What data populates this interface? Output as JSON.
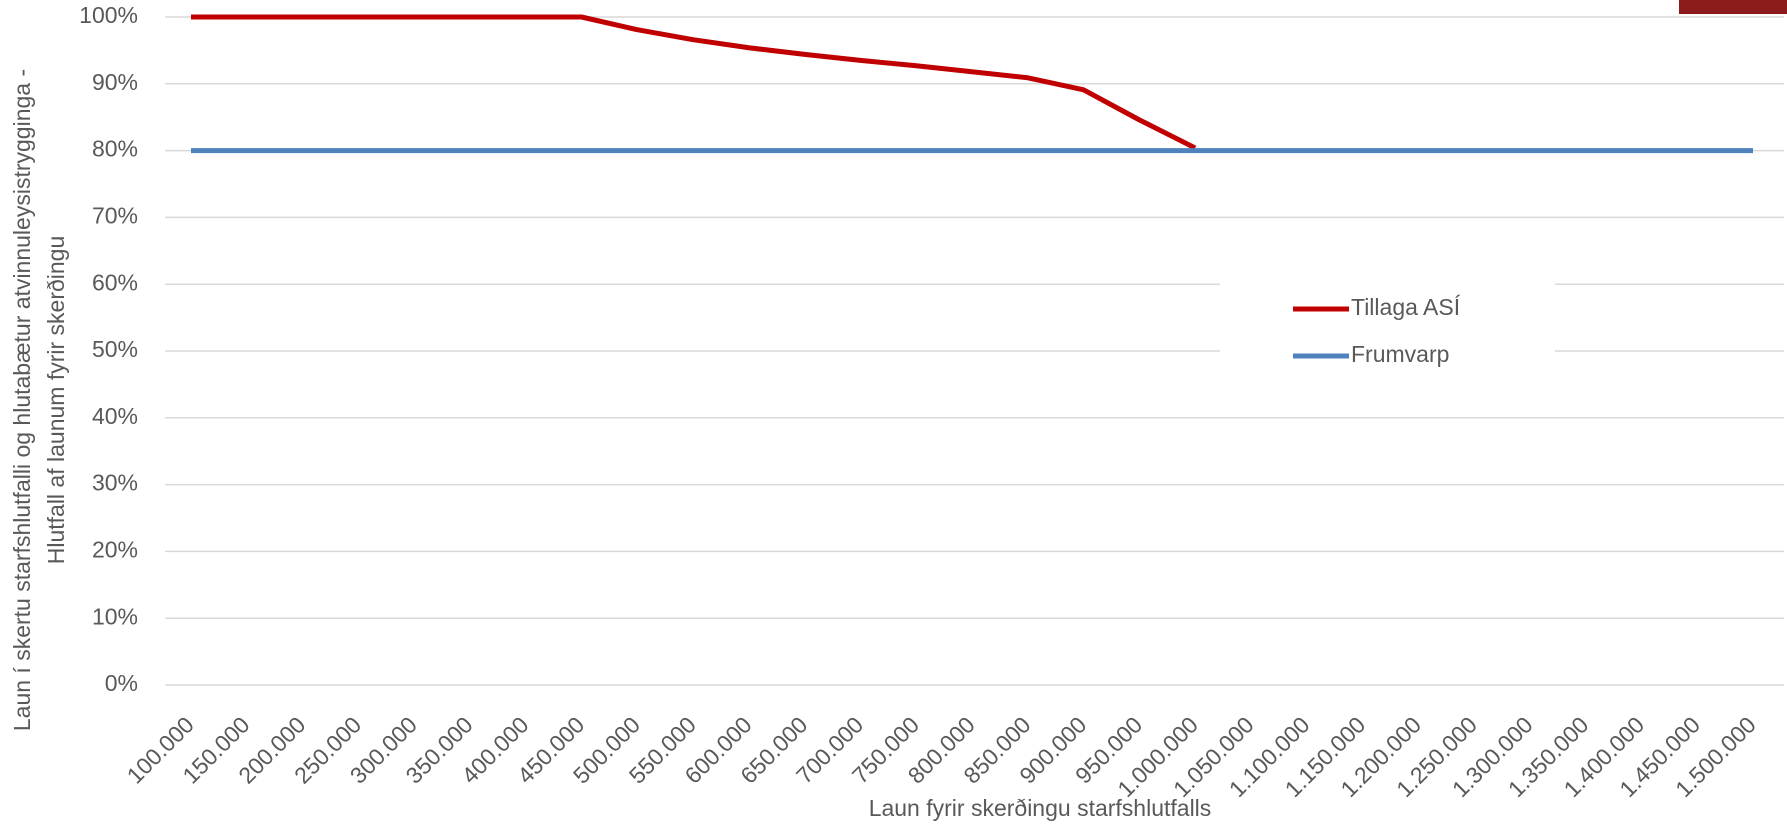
{
  "chart_data": {
    "type": "line",
    "y_title": [
      "Laun í skertu starfshlutfalli og hlutabætur atvinnuleysistrygginga -",
      "Hlutfall af launum fyrir skerðingu"
    ],
    "x_title": "Laun fyrir skerðingu starfshlutfalls",
    "categories": [
      "100.000",
      "150.000",
      "200.000",
      "250.000",
      "300.000",
      "350.000",
      "400.000",
      "450.000",
      "500.000",
      "550.000",
      "600.000",
      "650.000",
      "700.000",
      "750.000",
      "800.000",
      "850.000",
      "900.000",
      "950.000",
      "1.000.000",
      "1.050.000",
      "1.100.000",
      "1.150.000",
      "1.200.000",
      "1.250.000",
      "1.300.000",
      "1.350.000",
      "1.400.000",
      "1.450.000",
      "1.500.000"
    ],
    "series": [
      {
        "name": "Tillaga ASÍ",
        "color": "#c00000",
        "values": [
          100,
          100,
          100,
          100,
          100,
          100,
          100,
          100,
          98.1,
          96.6,
          95.4,
          94.4,
          93.5,
          92.7,
          91.8,
          90.9,
          89.1,
          84.6,
          80.4,
          null,
          null,
          null,
          null,
          null,
          null,
          null,
          null,
          null,
          null
        ]
      },
      {
        "name": "Frumvarp",
        "color": "#4f81bd",
        "values": [
          80,
          80,
          80,
          80,
          80,
          80,
          80,
          80,
          80,
          80,
          80,
          80,
          80,
          80,
          80,
          80,
          80,
          80,
          80,
          80,
          80,
          80,
          80,
          80,
          80,
          80,
          80,
          80,
          80
        ]
      }
    ],
    "ylim": [
      0,
      100
    ],
    "yticks": [
      {
        "value": 0,
        "label": "0%"
      },
      {
        "value": 10,
        "label": "10%"
      },
      {
        "value": 20,
        "label": "20%"
      },
      {
        "value": 30,
        "label": "30%"
      },
      {
        "value": 40,
        "label": "40%"
      },
      {
        "value": 50,
        "label": "50%"
      },
      {
        "value": 60,
        "label": "60%"
      },
      {
        "value": 70,
        "label": "70%"
      },
      {
        "value": 80,
        "label": "80%"
      },
      {
        "value": 90,
        "label": "90%"
      },
      {
        "value": 100,
        "label": "100%"
      }
    ],
    "grid": true
  }
}
